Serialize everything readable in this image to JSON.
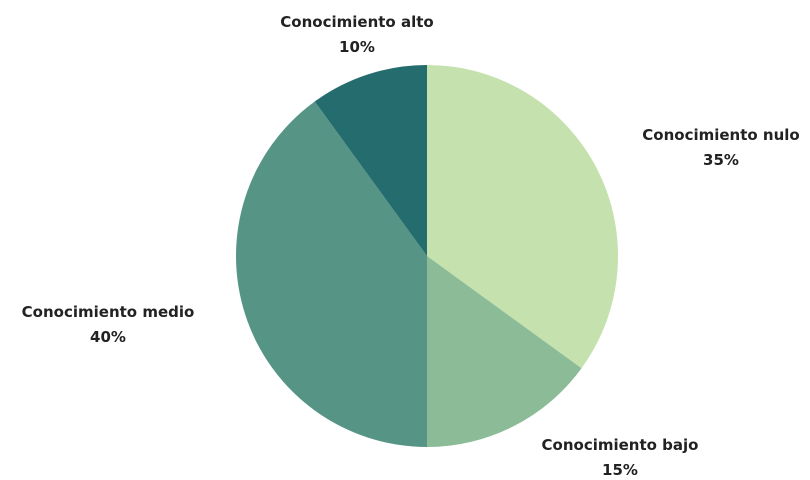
{
  "chart_data": {
    "type": "pie",
    "title": "",
    "slices": [
      {
        "label": "Conocimiento nulo",
        "value": 35,
        "value_label": "35%",
        "color": "#c5e1ad"
      },
      {
        "label": "Conocimiento bajo",
        "value": 15,
        "value_label": "15%",
        "color": "#8bbc97"
      },
      {
        "label": "Conocimiento medio",
        "value": 40,
        "value_label": "40%",
        "color": "#569585"
      },
      {
        "label": "Conocimiento alto",
        "value": 10,
        "value_label": "10%",
        "color": "#246c6e"
      }
    ],
    "start_angle": "12 o'clock",
    "direction": "clockwise",
    "legend": "none"
  }
}
